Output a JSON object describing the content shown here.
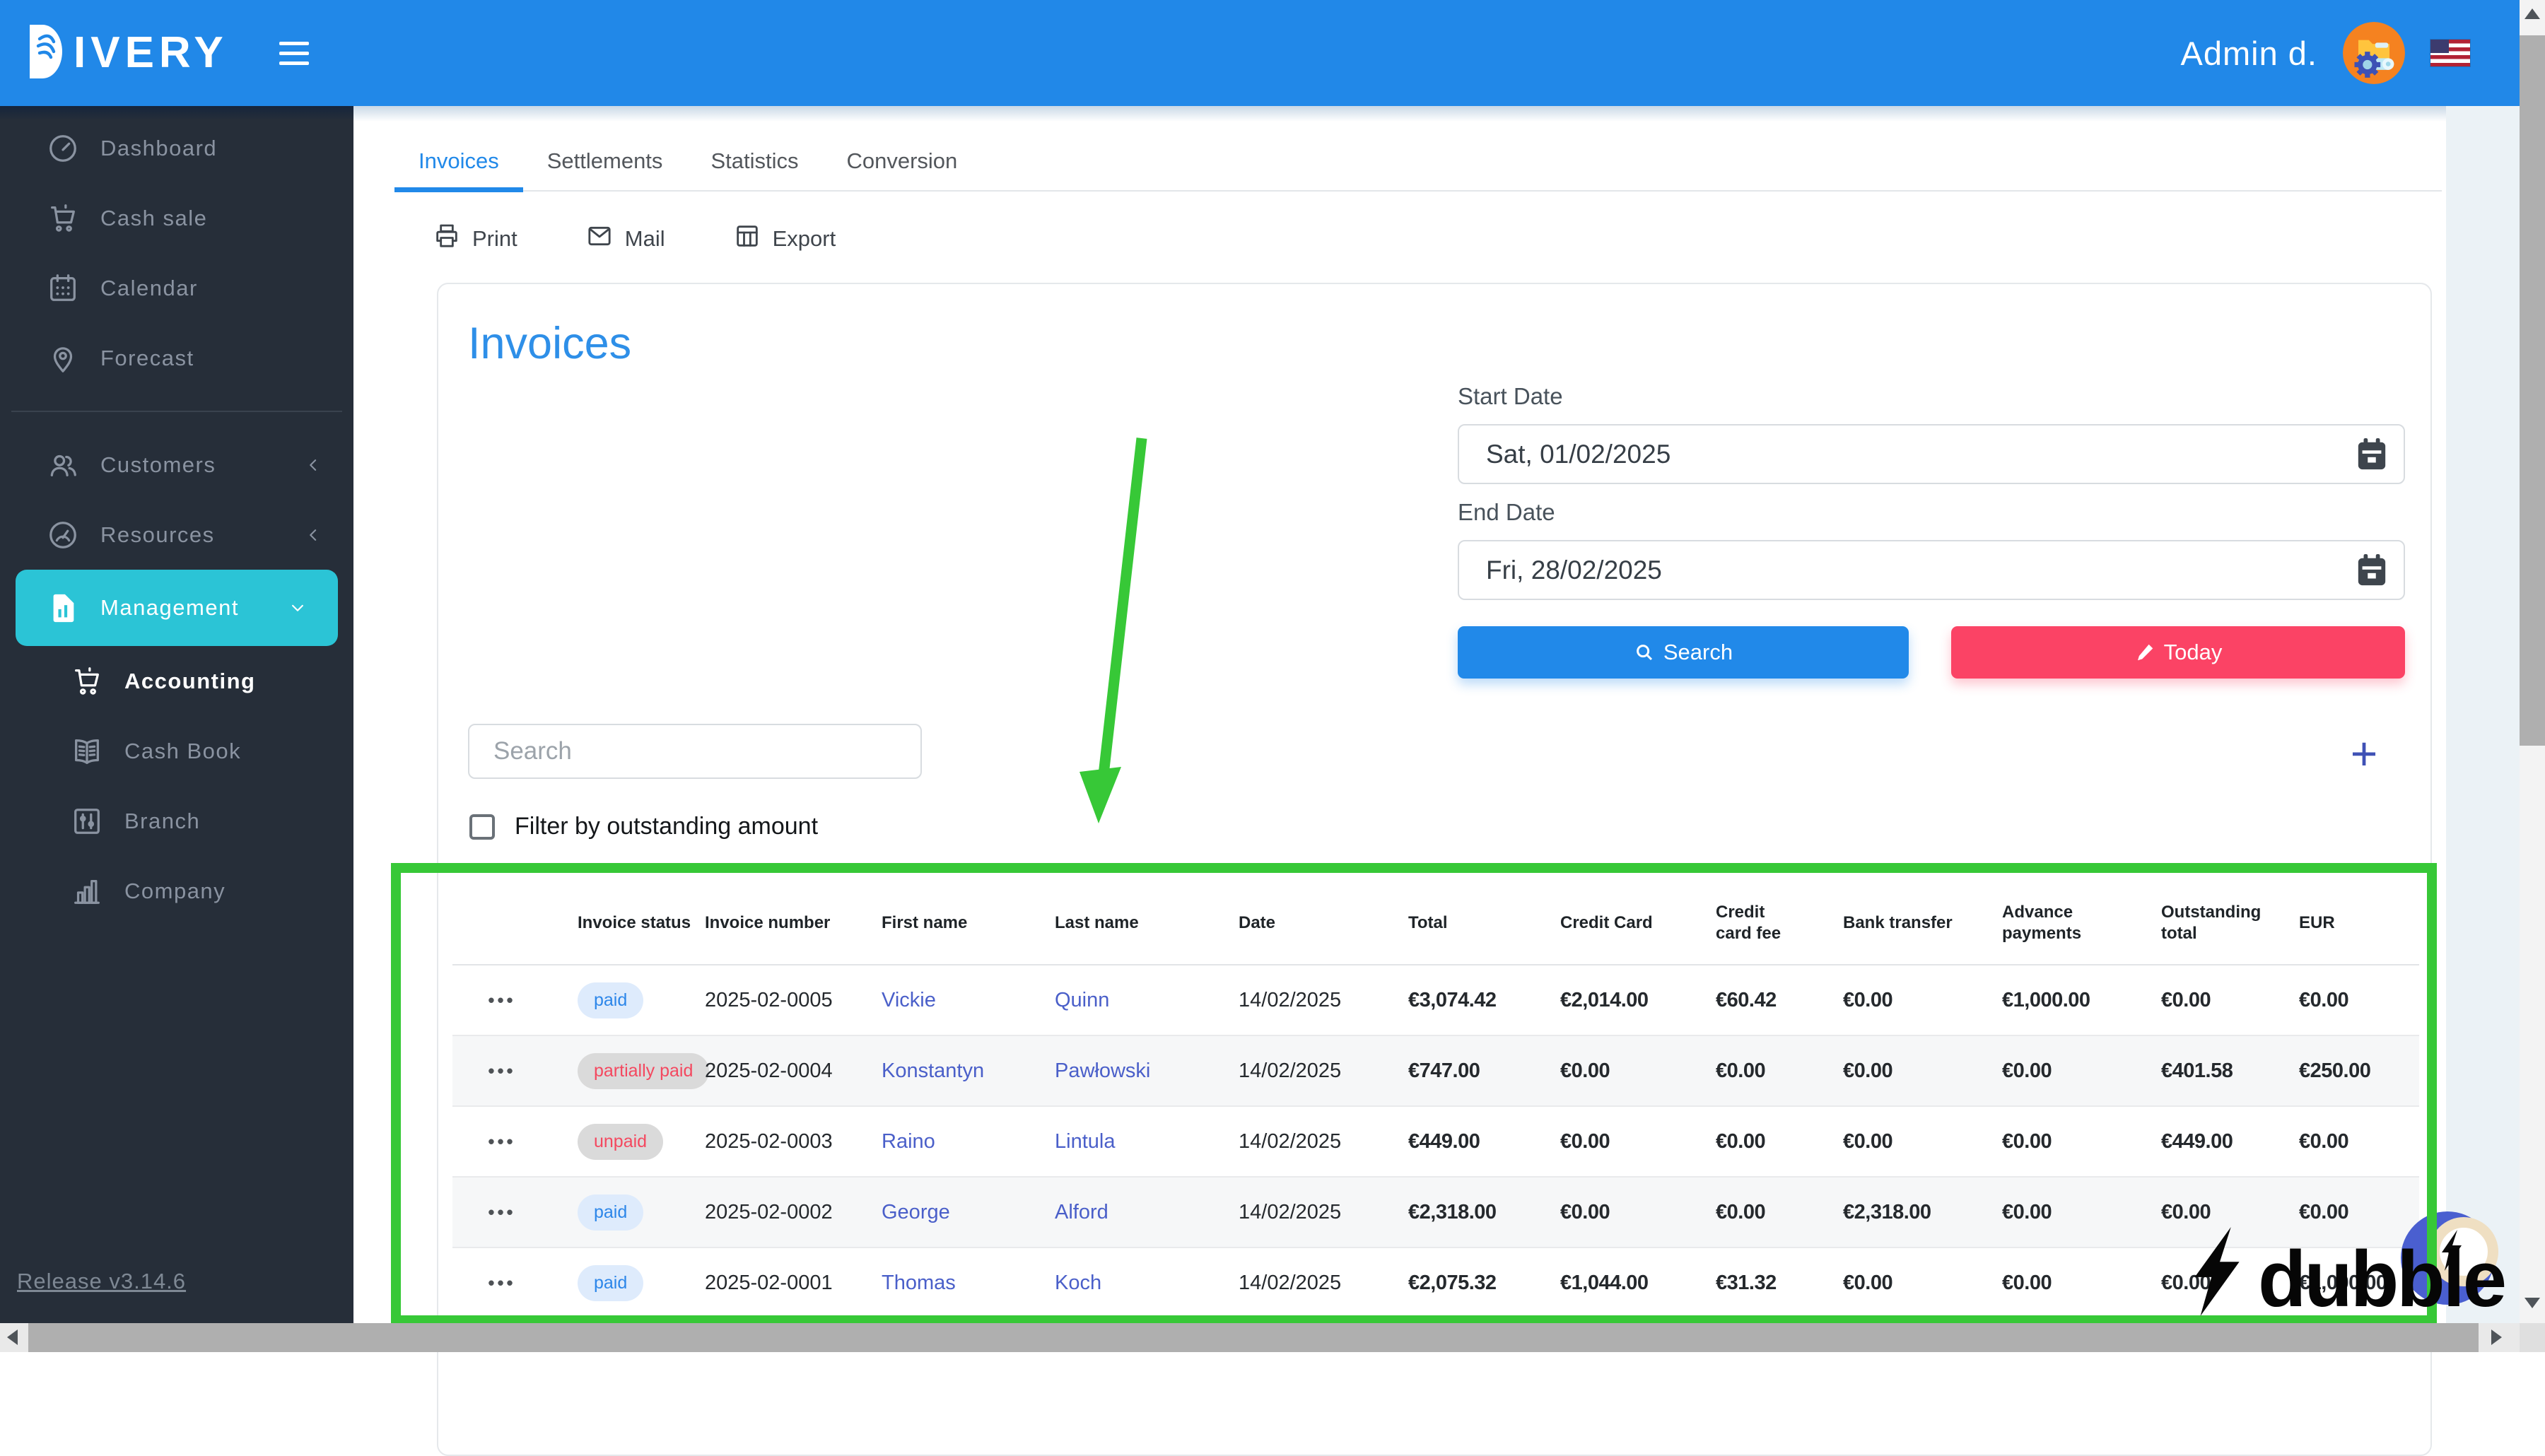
{
  "colors": {
    "topbar_blue": "#2188E8",
    "sidebar_dark": "#262E39",
    "active_menu_cyan": "#2BC4D6",
    "tab_active_blue": "#2189E9",
    "today_pink": "#FB4365",
    "money_green": "#1FA83C",
    "money_red": "#E7293E",
    "name_link_blue": "#4A5FC9",
    "annotation_green": "#37C837",
    "paid_badge_bg": "#DEEBFC",
    "unpaid_badge_bg": "#DADADA"
  },
  "topbar": {
    "logo_first_letter": "D",
    "logo_rest": "IVERY",
    "user_name": "Admin d."
  },
  "sidebar": {
    "items": [
      {
        "label": "Dashboard",
        "icon": "speedometer"
      },
      {
        "label": "Cash sale",
        "icon": "cart"
      },
      {
        "label": "Calendar",
        "icon": "calendar"
      },
      {
        "label": "Forecast",
        "icon": "map-pin"
      },
      {
        "type": "divider"
      },
      {
        "label": "Customers",
        "icon": "users",
        "chevron": "left"
      },
      {
        "label": "Resources",
        "icon": "gauge",
        "chevron": "left"
      },
      {
        "label": "Management",
        "icon": "file-chart",
        "chevron": "down",
        "active": true
      },
      {
        "label": "Accounting",
        "icon": "cart",
        "sub": true,
        "active_sub": true
      },
      {
        "label": "Cash Book",
        "icon": "book",
        "sub": true
      },
      {
        "label": "Branch",
        "icon": "sliders",
        "sub": true
      },
      {
        "label": "Company",
        "icon": "bar-chart",
        "sub": true
      }
    ],
    "release_label": "Release v3.14.6"
  },
  "tabs": [
    {
      "label": "Invoices",
      "active": true
    },
    {
      "label": "Settlements"
    },
    {
      "label": "Statistics"
    },
    {
      "label": "Conversion"
    }
  ],
  "toolbar": [
    {
      "label": "Print",
      "icon": "printer"
    },
    {
      "label": "Mail",
      "icon": "envelope"
    },
    {
      "label": "Export",
      "icon": "export-table"
    }
  ],
  "panel": {
    "title": "Invoices",
    "start_date_label": "Start Date",
    "start_date_value": "Sat, 01/02/2025",
    "end_date_label": "End Date",
    "end_date_value": "Fri, 28/02/2025",
    "search_button_label": "Search",
    "today_button_label": "Today",
    "search_placeholder": "Search",
    "add_button": "+",
    "filter_checkbox_label": "Filter by outstanding amount"
  },
  "table": {
    "row_menu_icon": "•••",
    "columns": [
      "",
      "Invoice status",
      "Invoice number",
      "First name",
      "Last name",
      "Date",
      "Total",
      "Credit Card",
      "Credit card fee",
      "Bank transfer",
      "Advance payments",
      "Outstanding total",
      "EUR"
    ],
    "rows": [
      {
        "status": "paid",
        "status_style": "paid",
        "invoice_number": "2025-02-0005",
        "first_name": "Vickie",
        "last_name": "Quinn",
        "date": "14/02/2025",
        "amounts": {
          "total": [
            "€3,074.42",
            "g"
          ],
          "credit_card": [
            "€2,014.00",
            "g"
          ],
          "credit_card_fee": [
            "€60.42",
            "g"
          ],
          "bank_transfer": [
            "€0.00",
            "k"
          ],
          "advance_payments": [
            "€1,000.00",
            "g"
          ],
          "outstanding_total": [
            "€0.00",
            "k"
          ],
          "eur": [
            "€0.00",
            "k"
          ]
        }
      },
      {
        "status": "partially paid",
        "status_style": "partial",
        "invoice_number": "2025-02-0004",
        "first_name": "Konstantyn",
        "last_name": "Pawłowski",
        "date": "14/02/2025",
        "amounts": {
          "total": [
            "€747.00",
            "g"
          ],
          "credit_card": [
            "€0.00",
            "k"
          ],
          "credit_card_fee": [
            "€0.00",
            "k"
          ],
          "bank_transfer": [
            "€0.00",
            "k"
          ],
          "advance_payments": [
            "€0.00",
            "k"
          ],
          "outstanding_total": [
            "€401.58",
            "r"
          ],
          "eur": [
            "€250.00",
            "g"
          ]
        }
      },
      {
        "status": "unpaid",
        "status_style": "unpaid",
        "invoice_number": "2025-02-0003",
        "first_name": "Raino",
        "last_name": "Lintula",
        "date": "14/02/2025",
        "amounts": {
          "total": [
            "€449.00",
            "g"
          ],
          "credit_card": [
            "€0.00",
            "k"
          ],
          "credit_card_fee": [
            "€0.00",
            "k"
          ],
          "bank_transfer": [
            "€0.00",
            "k"
          ],
          "advance_payments": [
            "€0.00",
            "k"
          ],
          "outstanding_total": [
            "€449.00",
            "r"
          ],
          "eur": [
            "€0.00",
            "k"
          ]
        }
      },
      {
        "status": "paid",
        "status_style": "paid",
        "invoice_number": "2025-02-0002",
        "first_name": "George",
        "last_name": "Alford",
        "date": "14/02/2025",
        "amounts": {
          "total": [
            "€2,318.00",
            "g"
          ],
          "credit_card": [
            "€0.00",
            "k"
          ],
          "credit_card_fee": [
            "€0.00",
            "k"
          ],
          "bank_transfer": [
            "€2,318.00",
            "g"
          ],
          "advance_payments": [
            "€0.00",
            "k"
          ],
          "outstanding_total": [
            "€0.00",
            "k"
          ],
          "eur": [
            "€0.00",
            "k"
          ]
        }
      },
      {
        "status": "paid",
        "status_style": "paid",
        "invoice_number": "2025-02-0001",
        "first_name": "Thomas",
        "last_name": "Koch",
        "date": "14/02/2025",
        "amounts": {
          "total": [
            "€2,075.32",
            "g"
          ],
          "credit_card": [
            "€1,044.00",
            "g"
          ],
          "credit_card_fee": [
            "€31.32",
            "g"
          ],
          "bank_transfer": [
            "€0.00",
            "k"
          ],
          "advance_payments": [
            "€0.00",
            "k"
          ],
          "outstanding_total": [
            "€0.00",
            "k"
          ],
          "eur": [
            "€1,000.00",
            "g"
          ]
        }
      }
    ]
  },
  "watermark": {
    "text": "dubble"
  }
}
